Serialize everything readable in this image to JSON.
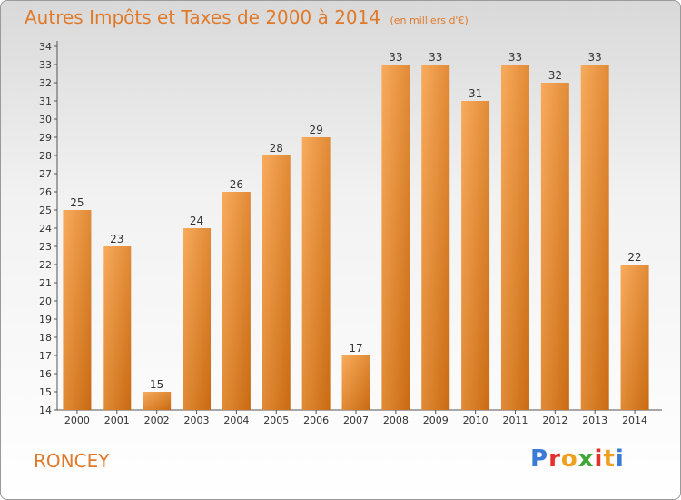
{
  "title": "Autres Impôts et Taxes de 2000 à 2014",
  "subtitle": "(en milliers d'€)",
  "commune": "RONCEY",
  "logo": {
    "text": "Proxiti",
    "colors": [
      "#3a7bd5",
      "#e3312b",
      "#f0a020",
      "#3fa535",
      "#e3312b",
      "#f0a020",
      "#3a7bd5"
    ]
  },
  "colors": {
    "bar_light": "#f8ab5c",
    "bar_dark": "#c96a12",
    "title": "#e07a2a",
    "text": "#333333"
  },
  "chart_data": {
    "type": "bar",
    "title": "Autres Impôts et Taxes de 2000 à 2014",
    "subtitle": "(en milliers d'€)",
    "categories": [
      "2000",
      "2001",
      "2002",
      "2003",
      "2004",
      "2005",
      "2006",
      "2007",
      "2008",
      "2009",
      "2010",
      "2011",
      "2012",
      "2013",
      "2014"
    ],
    "values": [
      25,
      23,
      15,
      24,
      26,
      28,
      29,
      17,
      33,
      33,
      31,
      33,
      32,
      33,
      22
    ],
    "ylim": [
      14,
      34
    ],
    "yticks": [
      14,
      15,
      16,
      17,
      18,
      19,
      20,
      21,
      22,
      23,
      24,
      25,
      26,
      27,
      28,
      29,
      30,
      31,
      32,
      33,
      34
    ],
    "grid": false,
    "data_labels": true
  }
}
